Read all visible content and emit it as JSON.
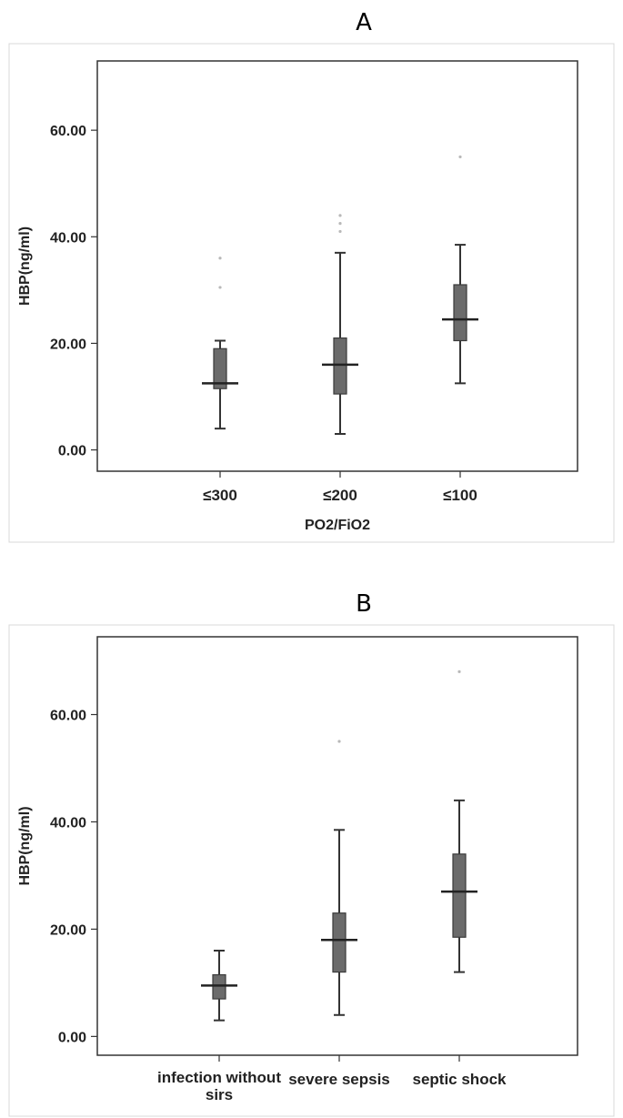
{
  "chart_data": [
    {
      "type": "box",
      "panel_label": "A",
      "xlabel": "PO2/FiO2",
      "ylabel": "HBP(ng/ml)",
      "categories": [
        "≤300",
        "≤200",
        "≤100"
      ],
      "yticks": [
        "0.00",
        "20.00",
        "40.00",
        "60.00"
      ],
      "ylim": [
        -4,
        73
      ],
      "boxes": [
        {
          "category": "≤300",
          "min": 4.0,
          "q1": 11.5,
          "median": 12.5,
          "q3": 19.0,
          "max": 20.5,
          "outliers": [
            30.5,
            36.0
          ]
        },
        {
          "category": "≤200",
          "min": 3.0,
          "q1": 10.5,
          "median": 16.0,
          "q3": 21.0,
          "max": 37.0,
          "outliers": [
            41.0,
            42.5,
            44.0
          ]
        },
        {
          "category": "≤100",
          "min": 12.5,
          "q1": 20.5,
          "median": 24.5,
          "q3": 31.0,
          "max": 38.5,
          "outliers": [
            55.0
          ]
        }
      ]
    },
    {
      "type": "box",
      "panel_label": "B",
      "xlabel": "",
      "ylabel": "HBP(ng/ml)",
      "categories": [
        "infection without sirs",
        "severe sepsis",
        "septic  shock"
      ],
      "yticks": [
        "0.00",
        "20.00",
        "40.00",
        "60.00"
      ],
      "ylim": [
        -3.5,
        74.5
      ],
      "boxes": [
        {
          "category": "infection without sirs",
          "min": 3.0,
          "q1": 7.0,
          "median": 9.5,
          "q3": 11.5,
          "max": 16.0,
          "outliers": []
        },
        {
          "category": "severe sepsis",
          "min": 4.0,
          "q1": 12.0,
          "median": 18.0,
          "q3": 23.0,
          "max": 38.5,
          "outliers": [
            55.0
          ]
        },
        {
          "category": "septic  shock",
          "min": 12.0,
          "q1": 18.5,
          "median": 27.0,
          "q3": 34.0,
          "max": 44.0,
          "outliers": [
            68.0
          ]
        }
      ]
    }
  ]
}
